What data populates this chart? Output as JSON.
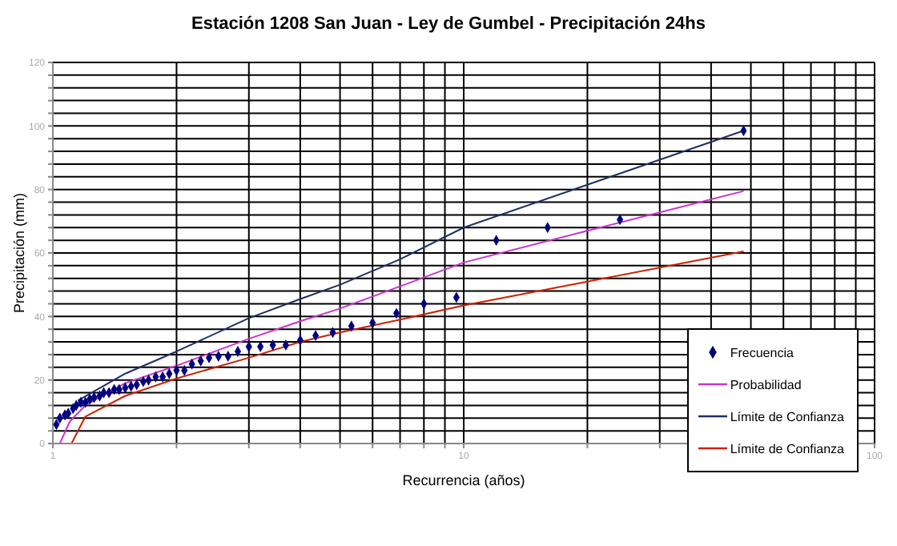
{
  "chart_data": {
    "type": "line",
    "title": "Estación 1208 San Juan - Ley de Gumbel - Precipitación 24hs",
    "xlabel": "Recurrencia (años)",
    "ylabel": "Precipitación (mm)",
    "log": "x",
    "grid": true,
    "legend": "right",
    "xlim": [
      1,
      100
    ],
    "ylim": [
      0,
      120
    ],
    "xticks": [
      1,
      {
        "value": 2,
        "label": null
      },
      {
        "value": 3,
        "label": null
      },
      {
        "value": 4,
        "label": null
      },
      {
        "value": 5,
        "label": null
      },
      {
        "value": 6,
        "label": null
      },
      {
        "value": 7,
        "label": null
      },
      {
        "value": 8,
        "label": null
      },
      {
        "value": 9,
        "label": null
      },
      10,
      {
        "value": 20,
        "label": null
      },
      {
        "value": 30,
        "label": null
      },
      {
        "value": 40,
        "label": null
      },
      {
        "value": 50,
        "label": null
      },
      {
        "value": 60,
        "label": null
      },
      {
        "value": 70,
        "label": null
      },
      {
        "value": 80,
        "label": null
      },
      {
        "value": 90,
        "label": null
      },
      100
    ],
    "yticks": [
      0,
      {
        "value": 4,
        "label": null
      },
      {
        "value": 8,
        "label": null
      },
      {
        "value": 12,
        "label": null
      },
      {
        "value": 16,
        "label": null
      },
      20,
      {
        "value": 24,
        "label": null
      },
      {
        "value": 28,
        "label": null
      },
      {
        "value": 32,
        "label": null
      },
      {
        "value": 36,
        "label": null
      },
      40,
      {
        "value": 44,
        "label": null
      },
      {
        "value": 48,
        "label": null
      },
      {
        "value": 52,
        "label": null
      },
      {
        "value": 56,
        "label": null
      },
      60,
      {
        "value": 64,
        "label": null
      },
      {
        "value": 68,
        "label": null
      },
      {
        "value": 72,
        "label": null
      },
      {
        "value": 76,
        "label": null
      },
      80,
      {
        "value": 84,
        "label": null
      },
      {
        "value": 88,
        "label": null
      },
      {
        "value": 92,
        "label": null
      },
      {
        "value": 96,
        "label": null
      },
      100,
      {
        "value": 104,
        "label": null
      },
      {
        "value": 108,
        "label": null
      },
      {
        "value": 112,
        "label": null
      },
      {
        "value": 116,
        "label": null
      },
      120
    ],
    "series": [
      {
        "name": "Frecuencia",
        "type": "scatter",
        "marker": "diamond",
        "color": "#00007f",
        "x": [
          48,
          24,
          16,
          12,
          9.6,
          8,
          6.86,
          6,
          5.33,
          4.8,
          4.36,
          4,
          3.69,
          3.43,
          3.2,
          3,
          2.82,
          2.67,
          2.53,
          2.4,
          2.29,
          2.18,
          2.09,
          2,
          1.92,
          1.85,
          1.78,
          1.71,
          1.66,
          1.6,
          1.55,
          1.5,
          1.45,
          1.41,
          1.37,
          1.33,
          1.3,
          1.26,
          1.23,
          1.2,
          1.17,
          1.14,
          1.12,
          1.09,
          1.07,
          1.04,
          1.02
        ],
        "values": [
          98.5,
          70.5,
          68,
          64,
          46,
          44,
          41,
          38,
          37,
          35,
          34,
          32.5,
          31,
          31,
          30.5,
          30.5,
          29,
          27.5,
          27.5,
          27,
          26,
          25,
          23,
          23,
          22,
          21,
          21,
          20,
          19.5,
          18.5,
          18,
          17.5,
          17,
          17,
          16,
          16,
          15,
          14.5,
          14,
          13,
          13,
          12,
          11,
          9.5,
          9,
          8,
          6
        ]
      },
      {
        "name": "Probabilidad",
        "type": "line",
        "marker": "none",
        "color": "#cc33cc",
        "x": [
          1.04,
          1.1,
          1.2,
          1.5,
          2,
          3,
          4,
          5,
          7,
          10,
          20,
          48
        ],
        "values": [
          0,
          7,
          12,
          19,
          24.5,
          33,
          38.5,
          42.5,
          49.5,
          57,
          67,
          79.5
        ]
      },
      {
        "name": "Límite de Confianza",
        "type": "line",
        "marker": "none",
        "color": "#1f2f66",
        "x": [
          1.15,
          1.5,
          2,
          3,
          4,
          5,
          7,
          10,
          20,
          48
        ],
        "values": [
          13.5,
          22,
          29,
          39.5,
          45.5,
          50,
          58,
          68,
          81.5,
          98.5
        ]
      },
      {
        "name": "Límite de Confianza",
        "type": "line",
        "marker": "none",
        "color": "#cc2200",
        "x": [
          1.11,
          1.2,
          1.5,
          2,
          3,
          4,
          5,
          7,
          10,
          20,
          48
        ],
        "values": [
          0,
          8.5,
          15,
          20.5,
          27,
          32,
          35,
          39,
          43.5,
          51,
          60.5
        ]
      }
    ]
  }
}
